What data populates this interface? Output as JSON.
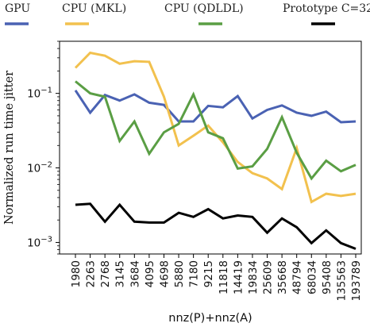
{
  "chart_data": {
    "type": "line",
    "title": "",
    "xlabel": "nnz(P)+nnz(A)",
    "ylabel": "Normalized run time jitter",
    "y_scale": "log",
    "ylim": [
      0.0007,
      0.5
    ],
    "y_ticks": [
      {
        "value": 0.001,
        "base": "10",
        "exp": "−3"
      },
      {
        "value": 0.01,
        "base": "10",
        "exp": "−2"
      },
      {
        "value": 0.1,
        "base": "10",
        "exp": "−1"
      }
    ],
    "categories": [
      "1980",
      "2263",
      "2768",
      "3145",
      "3684",
      "4095",
      "4698",
      "5880",
      "7180",
      "9215",
      "11818",
      "14419",
      "19834",
      "25609",
      "35668",
      "48794",
      "68034",
      "95408",
      "135563",
      "193789"
    ],
    "legend_position": "top",
    "grid": false,
    "series": [
      {
        "name": "GPU",
        "color": "#4a62b3",
        "values": [
          0.11,
          0.055,
          0.095,
          0.08,
          0.097,
          0.075,
          0.07,
          0.042,
          0.042,
          0.068,
          0.065,
          0.092,
          0.046,
          0.06,
          0.069,
          0.055,
          0.05,
          0.057,
          0.041,
          0.042
        ]
      },
      {
        "name": "CPU (MKL)",
        "color": "#f2c14e",
        "values": [
          0.22,
          0.35,
          0.32,
          0.25,
          0.27,
          0.265,
          0.09,
          0.02,
          0.027,
          0.037,
          0.022,
          0.012,
          0.0085,
          0.0072,
          0.0052,
          0.0185,
          0.0035,
          0.0045,
          0.0042,
          0.0045
        ]
      },
      {
        "name": "CPU (QDLDL)",
        "color": "#5a9e44",
        "values": [
          0.145,
          0.1,
          0.09,
          0.023,
          0.042,
          0.0155,
          0.03,
          0.039,
          0.097,
          0.03,
          0.025,
          0.0098,
          0.0105,
          0.018,
          0.048,
          0.016,
          0.0072,
          0.0125,
          0.009,
          0.011
        ]
      },
      {
        "name": "Prototype C=32",
        "color": "#000000",
        "values": [
          0.0032,
          0.0033,
          0.0019,
          0.0032,
          0.0019,
          0.00185,
          0.00185,
          0.0025,
          0.0022,
          0.0028,
          0.0021,
          0.0023,
          0.0022,
          0.00135,
          0.0021,
          0.0016,
          0.00098,
          0.00145,
          0.00098,
          0.00082
        ]
      }
    ]
  }
}
